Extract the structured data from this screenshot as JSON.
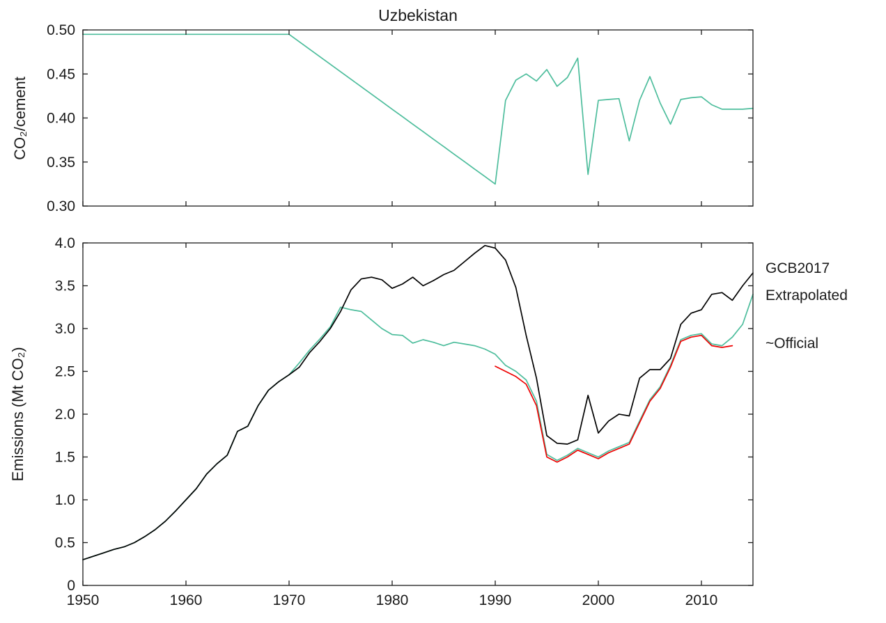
{
  "figure": {
    "background": "#ffffff",
    "axis_color": "#1a1a1a"
  },
  "legend": {
    "entries": [
      {
        "label": "GCB2017",
        "color": "#000000"
      },
      {
        "label": "Extrapolated",
        "color": "#4dbd9c"
      },
      {
        "label": "~Official",
        "color": "#ee0000"
      }
    ]
  },
  "chart_data": [
    {
      "type": "line",
      "title": "Uzbekistan",
      "ylabel": "CO₂/cement",
      "xlabel": "",
      "xlim": [
        1950,
        2015
      ],
      "ylim": [
        0.3,
        0.5
      ],
      "yticks": [
        0.3,
        0.35,
        0.4,
        0.45,
        0.5
      ],
      "ytick_decimals": 2,
      "xticks": [
        1950,
        1960,
        1970,
        1980,
        1990,
        2000,
        2010
      ],
      "show_xtick_labels": false,
      "grid": false,
      "series": [
        {
          "name": "Extrapolated",
          "color": "#4dbd9c",
          "x": [
            1950,
            1951,
            1952,
            1953,
            1954,
            1955,
            1956,
            1957,
            1958,
            1959,
            1960,
            1961,
            1962,
            1963,
            1964,
            1965,
            1966,
            1967,
            1968,
            1969,
            1970,
            1971,
            1972,
            1973,
            1974,
            1975,
            1976,
            1977,
            1978,
            1979,
            1980,
            1981,
            1982,
            1983,
            1984,
            1985,
            1986,
            1987,
            1988,
            1989,
            1990,
            1991,
            1992,
            1993,
            1994,
            1995,
            1996,
            1997,
            1998,
            1999,
            2000,
            2001,
            2002,
            2003,
            2004,
            2005,
            2006,
            2007,
            2008,
            2009,
            2010,
            2011,
            2012,
            2013,
            2014,
            2015
          ],
          "y": [
            0.495,
            0.495,
            0.495,
            0.495,
            0.495,
            0.495,
            0.495,
            0.495,
            0.495,
            0.495,
            0.495,
            0.495,
            0.495,
            0.495,
            0.495,
            0.495,
            0.495,
            0.495,
            0.495,
            0.495,
            0.495,
            0.4865,
            0.478,
            0.4695,
            0.461,
            0.4525,
            0.444,
            0.4355,
            0.427,
            0.4185,
            0.41,
            0.4015,
            0.393,
            0.3845,
            0.376,
            0.3675,
            0.359,
            0.3505,
            0.342,
            0.3335,
            0.325,
            0.42,
            0.443,
            0.45,
            0.442,
            0.455,
            0.436,
            0.446,
            0.468,
            0.336,
            0.42,
            0.421,
            0.422,
            0.374,
            0.42,
            0.447,
            0.417,
            0.393,
            0.421,
            0.423,
            0.424,
            0.415,
            0.41,
            0.41,
            0.41,
            0.411
          ]
        }
      ]
    },
    {
      "type": "line",
      "title": "",
      "ylabel": "Emissions (Mt CO₂)",
      "xlabel": "",
      "xlim": [
        1950,
        2015
      ],
      "ylim": [
        0,
        4.0
      ],
      "yticks": [
        0,
        0.5,
        1.0,
        1.5,
        2.0,
        2.5,
        3.0,
        3.5,
        4.0
      ],
      "ytick_decimals": 1,
      "xticks": [
        1950,
        1960,
        1970,
        1980,
        1990,
        2000,
        2010
      ],
      "show_xtick_labels": true,
      "grid": false,
      "series": [
        {
          "name": "Extrapolated",
          "color": "#4dbd9c",
          "x": [
            1950,
            1951,
            1952,
            1953,
            1954,
            1955,
            1956,
            1957,
            1958,
            1959,
            1960,
            1961,
            1962,
            1963,
            1964,
            1965,
            1966,
            1967,
            1968,
            1969,
            1970,
            1971,
            1972,
            1973,
            1974,
            1975,
            1976,
            1977,
            1978,
            1979,
            1980,
            1981,
            1982,
            1983,
            1984,
            1985,
            1986,
            1987,
            1988,
            1989,
            1990,
            1991,
            1992,
            1993,
            1994,
            1995,
            1996,
            1997,
            1998,
            1999,
            2000,
            2001,
            2002,
            2003,
            2004,
            2005,
            2006,
            2007,
            2008,
            2009,
            2010,
            2011,
            2012,
            2013,
            2014,
            2015
          ],
          "y": [
            0.3,
            0.34,
            0.38,
            0.42,
            0.45,
            0.5,
            0.57,
            0.65,
            0.75,
            0.87,
            1.0,
            1.13,
            1.3,
            1.42,
            1.52,
            1.8,
            1.86,
            2.1,
            2.28,
            2.38,
            2.46,
            2.6,
            2.75,
            2.88,
            3.02,
            3.25,
            3.22,
            3.2,
            3.1,
            3.0,
            2.93,
            2.92,
            2.83,
            2.87,
            2.84,
            2.8,
            2.84,
            2.82,
            2.8,
            2.76,
            2.7,
            2.57,
            2.5,
            2.4,
            2.15,
            1.53,
            1.46,
            1.52,
            1.6,
            1.55,
            1.5,
            1.57,
            1.62,
            1.67,
            1.92,
            2.17,
            2.32,
            2.57,
            2.87,
            2.92,
            2.94,
            2.82,
            2.8,
            2.9,
            3.05,
            3.4
          ]
        },
        {
          "name": "~Official",
          "color": "#ee0000",
          "x": [
            1990,
            1991,
            1992,
            1993,
            1994,
            1995,
            1996,
            1997,
            1998,
            1999,
            2000,
            2001,
            2002,
            2003,
            2004,
            2005,
            2006,
            2007,
            2008,
            2009,
            2010,
            2011,
            2012,
            2013
          ],
          "y": [
            2.56,
            2.5,
            2.44,
            2.35,
            2.1,
            1.5,
            1.44,
            1.5,
            1.58,
            1.53,
            1.48,
            1.55,
            1.6,
            1.65,
            1.9,
            2.15,
            2.3,
            2.55,
            2.85,
            2.9,
            2.92,
            2.8,
            2.78,
            2.8
          ]
        },
        {
          "name": "GCB2017",
          "color": "#000000",
          "x": [
            1950,
            1951,
            1952,
            1953,
            1954,
            1955,
            1956,
            1957,
            1958,
            1959,
            1960,
            1961,
            1962,
            1963,
            1964,
            1965,
            1966,
            1967,
            1968,
            1969,
            1970,
            1971,
            1972,
            1973,
            1974,
            1975,
            1976,
            1977,
            1978,
            1979,
            1980,
            1981,
            1982,
            1983,
            1984,
            1985,
            1986,
            1987,
            1988,
            1989,
            1990,
            1991,
            1992,
            1993,
            1994,
            1995,
            1996,
            1997,
            1998,
            1999,
            2000,
            2001,
            2002,
            2003,
            2004,
            2005,
            2006,
            2007,
            2008,
            2009,
            2010,
            2011,
            2012,
            2013,
            2014,
            2015
          ],
          "y": [
            0.3,
            0.34,
            0.38,
            0.42,
            0.45,
            0.5,
            0.57,
            0.65,
            0.75,
            0.87,
            1.0,
            1.13,
            1.3,
            1.42,
            1.52,
            1.8,
            1.86,
            2.1,
            2.28,
            2.38,
            2.46,
            2.55,
            2.72,
            2.85,
            3.0,
            3.2,
            3.45,
            3.58,
            3.6,
            3.57,
            3.47,
            3.52,
            3.6,
            3.5,
            3.56,
            3.63,
            3.68,
            3.78,
            3.88,
            3.97,
            3.94,
            3.8,
            3.48,
            2.92,
            2.42,
            1.75,
            1.66,
            1.65,
            1.7,
            2.22,
            1.78,
            1.92,
            2.0,
            1.98,
            2.42,
            2.52,
            2.52,
            2.65,
            3.05,
            3.18,
            3.22,
            3.4,
            3.42,
            3.33,
            3.5,
            3.65
          ]
        }
      ]
    }
  ]
}
